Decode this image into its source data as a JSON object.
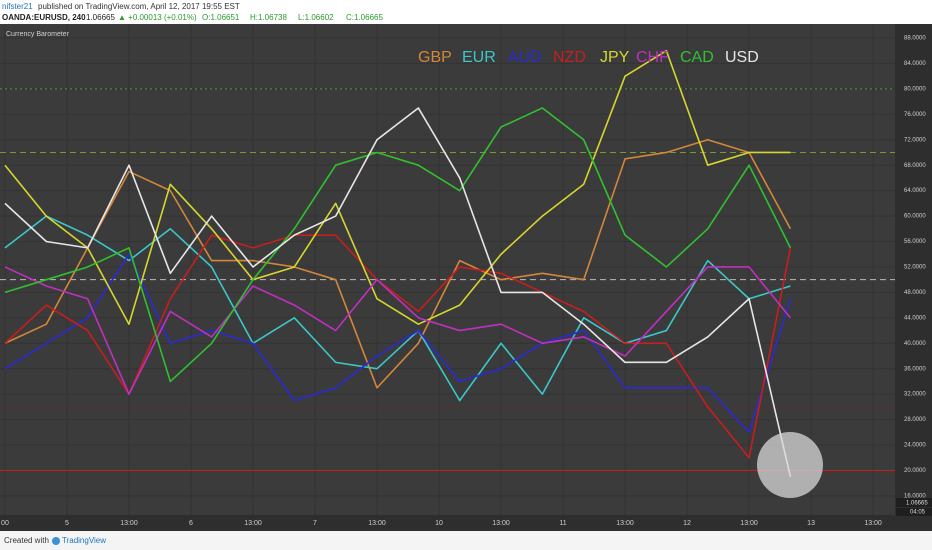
{
  "header": {
    "user": "nifster21",
    "published": "published on TradingView.com, April 12, 2017 19:55 EST",
    "symbol": "OANDA:EURUSD, 240",
    "last": "1.06665",
    "change": "▲ +0.00013 (+0.01%)",
    "ohlc": [
      "O:1.06651",
      "H:1.06738",
      "L:1.06602",
      "C:1.06665"
    ]
  },
  "footer": {
    "created": "Created with",
    "brand": "TradingView"
  },
  "chart_data": {
    "type": "line",
    "title": "Currency Barometer",
    "x": [
      0,
      2,
      4,
      6,
      8,
      10,
      12,
      14,
      16,
      18,
      20,
      22,
      24,
      26,
      28,
      30,
      32,
      34,
      36,
      38
    ],
    "xlim": [
      -0.24,
      43.06
    ],
    "xticks": [
      {
        "value": 0,
        "label": "00"
      },
      {
        "value": 3,
        "label": "5"
      },
      {
        "value": 6,
        "label": "13:00"
      },
      {
        "value": 9,
        "label": "6"
      },
      {
        "value": 12,
        "label": "13:00"
      },
      {
        "value": 15,
        "label": "7"
      },
      {
        "value": 18,
        "label": "13:00"
      },
      {
        "value": 21,
        "label": "10"
      },
      {
        "value": 24,
        "label": "13:00"
      },
      {
        "value": 27,
        "label": "11"
      },
      {
        "value": 30,
        "label": "13:00"
      },
      {
        "value": 33,
        "label": "12"
      },
      {
        "value": 36,
        "label": "13:00"
      },
      {
        "value": 39,
        "label": "13"
      },
      {
        "value": 42,
        "label": "13:00"
      }
    ],
    "ylim": [
      13,
      90.2
    ],
    "yticks": [
      {
        "value": 88,
        "label": "88.0000"
      },
      {
        "value": 84,
        "label": "84.0000"
      },
      {
        "value": 80,
        "label": "80.0000"
      },
      {
        "value": 76,
        "label": "76.0000"
      },
      {
        "value": 72,
        "label": "72.0000"
      },
      {
        "value": 68,
        "label": "68.0000"
      },
      {
        "value": 64,
        "label": "64.0000"
      },
      {
        "value": 60,
        "label": "60.0000"
      },
      {
        "value": 56,
        "label": "56.0000"
      },
      {
        "value": 52,
        "label": "52.0000"
      },
      {
        "value": 48,
        "label": "48.0000"
      },
      {
        "value": 44,
        "label": "44.0000"
      },
      {
        "value": 40,
        "label": "40.0000"
      },
      {
        "value": 36,
        "label": "36.0000"
      },
      {
        "value": 32,
        "label": "32.0000"
      },
      {
        "value": 28,
        "label": "28.0000"
      },
      {
        "value": 24,
        "label": "24.0000"
      },
      {
        "value": 20,
        "label": "20.0000"
      },
      {
        "value": 16,
        "label": "16.0000"
      }
    ],
    "grid": true,
    "hlines": [
      {
        "value": 80,
        "color": "#3fa33f",
        "style": "dotted"
      },
      {
        "value": 70,
        "color": "#7a9a2a",
        "style": "dashed"
      },
      {
        "value": 50,
        "color": "#bbbbbb",
        "style": "dashed"
      },
      {
        "value": 30,
        "color": "#7a2020",
        "style": "dotted"
      },
      {
        "value": 20,
        "color": "#c81e1e",
        "style": "solid"
      }
    ],
    "price_label": "1.06665",
    "time_label": "04:05",
    "series": [
      {
        "name": "GBP",
        "color": "#d2873a",
        "values": [
          40,
          43,
          55,
          67,
          64,
          53,
          53,
          52,
          50,
          33,
          40,
          53,
          50,
          51,
          50,
          69,
          70,
          72,
          70,
          58
        ]
      },
      {
        "name": "EUR",
        "color": "#3cc7c9",
        "values": [
          55,
          60,
          57,
          53,
          58,
          52,
          40,
          44,
          37,
          36,
          42,
          31,
          40,
          32,
          44,
          40,
          42,
          53,
          47,
          49
        ]
      },
      {
        "name": "AUD",
        "color": "#2a2ad6",
        "values": [
          36,
          40,
          44,
          54,
          40,
          42,
          40,
          31,
          33,
          38,
          42,
          34,
          36,
          40,
          42,
          33,
          33,
          33,
          26,
          47
        ]
      },
      {
        "name": "NZD",
        "color": "#c81e1e",
        "values": [
          40,
          46,
          42,
          32,
          47,
          57,
          55,
          57,
          57,
          50,
          45,
          52,
          51,
          48,
          45,
          40,
          40,
          30,
          22,
          55
        ]
      },
      {
        "name": "JPY",
        "color": "#d6d630",
        "values": [
          68,
          60,
          55,
          43,
          65,
          58,
          50,
          52,
          62,
          47,
          43,
          46,
          54,
          60,
          65,
          82,
          86,
          68,
          70,
          70
        ]
      },
      {
        "name": "CHF",
        "color": "#c030c0",
        "values": [
          52,
          49,
          47,
          32,
          45,
          41,
          49,
          46,
          42,
          50,
          44,
          42,
          43,
          40,
          41,
          38,
          45,
          52,
          52,
          44
        ]
      },
      {
        "name": "CAD",
        "color": "#30c030",
        "values": [
          48,
          50,
          52,
          55,
          34,
          40,
          50,
          58,
          68,
          70,
          68,
          64,
          74,
          77,
          72,
          57,
          52,
          58,
          68,
          55
        ]
      },
      {
        "name": "USD",
        "color": "#e6e6e6",
        "values": [
          62,
          56,
          55,
          68,
          51,
          60,
          52,
          57,
          60,
          72,
          77,
          66,
          48,
          48,
          43,
          37,
          37,
          41,
          47,
          19
        ]
      }
    ]
  }
}
